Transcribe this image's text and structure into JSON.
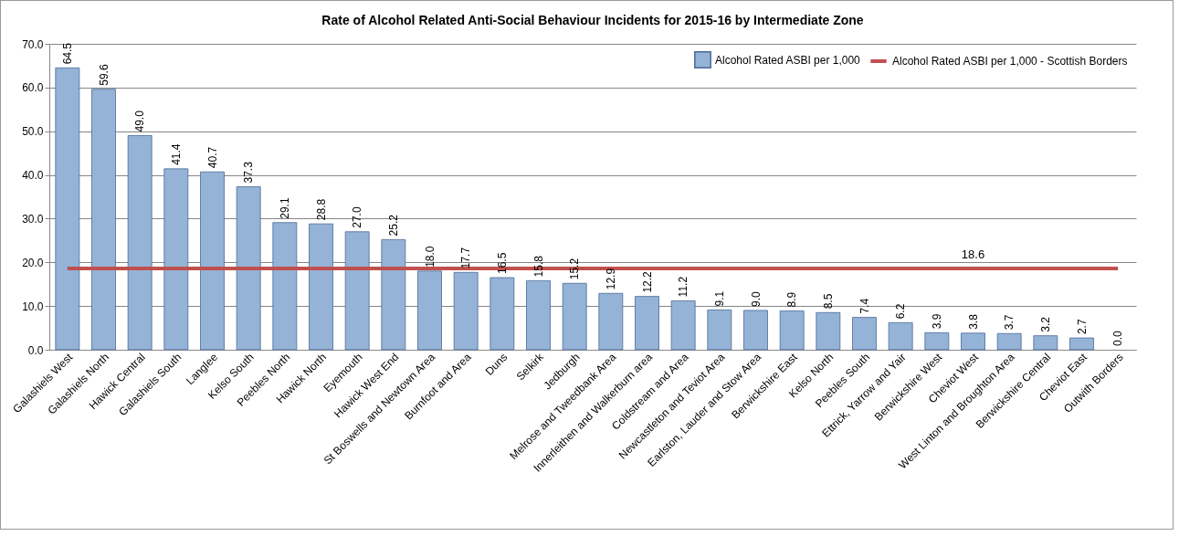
{
  "chart_data": {
    "type": "bar",
    "title": "Rate of Alcohol Related Anti-Social Behaviour Incidents for 2015-16 by Intermediate Zone",
    "categories": [
      "Galashiels West",
      "Galashiels North",
      "Hawick Central",
      "Galashiels South",
      "Langlee",
      "Kelso South",
      "Peebles North",
      "Hawick North",
      "Eyemouth",
      "Hawick West End",
      "St Boswells and Newtown Area",
      "Burnfoot and Area",
      "Duns",
      "Selkirk",
      "Jedburgh",
      "Melrose and Tweedbank Area",
      "Innerleithen and Walkerburn area",
      "Coldstream and Area",
      "Newcastleton and Teviot Area",
      "Earlston, Lauder and Stow Area",
      "Berwickshire East",
      "Kelso North",
      "Peebles South",
      "Ettrick, Yarrow and Yair",
      "Berwickshire West",
      "Cheviot West",
      "West Linton and Broughton Area",
      "Berwickshire Central",
      "Cheviot East",
      "Outwith Borders"
    ],
    "series": [
      {
        "name": "Alcohol Rated ASBI per 1,000",
        "color": "#95b3d7",
        "values": [
          64.5,
          59.6,
          49.0,
          41.4,
          40.7,
          37.3,
          29.1,
          28.8,
          27.0,
          25.2,
          18.0,
          17.7,
          16.5,
          15.8,
          15.2,
          12.9,
          12.2,
          11.2,
          9.1,
          9.0,
          8.9,
          8.5,
          7.4,
          6.2,
          3.9,
          3.8,
          3.7,
          3.2,
          2.7,
          0.0
        ],
        "value_labels": [
          "64.5",
          "59.6",
          "49.0",
          "41.4",
          "40.7",
          "37.3",
          "29.1",
          "28.8",
          "27.0",
          "25.2",
          "18.0",
          "17.7",
          "16.5",
          "15.8",
          "15.2",
          "12.9",
          "12.2",
          "11.2",
          "9.1",
          "9.0",
          "8.9",
          "8.5",
          "7.4",
          "6.2",
          "3.9",
          "3.8",
          "3.7",
          "3.2",
          "2.7",
          "0.0"
        ]
      },
      {
        "name": "Alcohol Rated ASBI per 1,000 - Scottish Borders",
        "type": "line",
        "color": "#c0504d",
        "values": [
          18.6,
          18.6,
          18.6,
          18.6,
          18.6,
          18.6,
          18.6,
          18.6,
          18.6,
          18.6,
          18.6,
          18.6,
          18.6,
          18.6,
          18.6,
          18.6,
          18.6,
          18.6,
          18.6,
          18.6,
          18.6,
          18.6,
          18.6,
          18.6,
          18.6,
          18.6,
          18.6,
          18.6,
          18.6,
          18.6
        ],
        "value_labels": [
          null,
          null,
          null,
          null,
          null,
          null,
          null,
          null,
          null,
          null,
          null,
          null,
          null,
          null,
          null,
          null,
          null,
          null,
          null,
          null,
          null,
          null,
          null,
          null,
          null,
          "18.6",
          null,
          null,
          null,
          null
        ]
      }
    ],
    "ylim": [
      0,
      70
    ],
    "yticks": [
      {
        "value": 0,
        "label": "0.0"
      },
      {
        "value": 10,
        "label": "10.0"
      },
      {
        "value": 20,
        "label": "20.0"
      },
      {
        "value": 30,
        "label": "30.0"
      },
      {
        "value": 40,
        "label": "40.0"
      },
      {
        "value": 50,
        "label": "50.0"
      },
      {
        "value": 60,
        "label": "60.0"
      },
      {
        "value": 70,
        "label": "70.0"
      }
    ],
    "grid": "y",
    "legend": "top right"
  }
}
